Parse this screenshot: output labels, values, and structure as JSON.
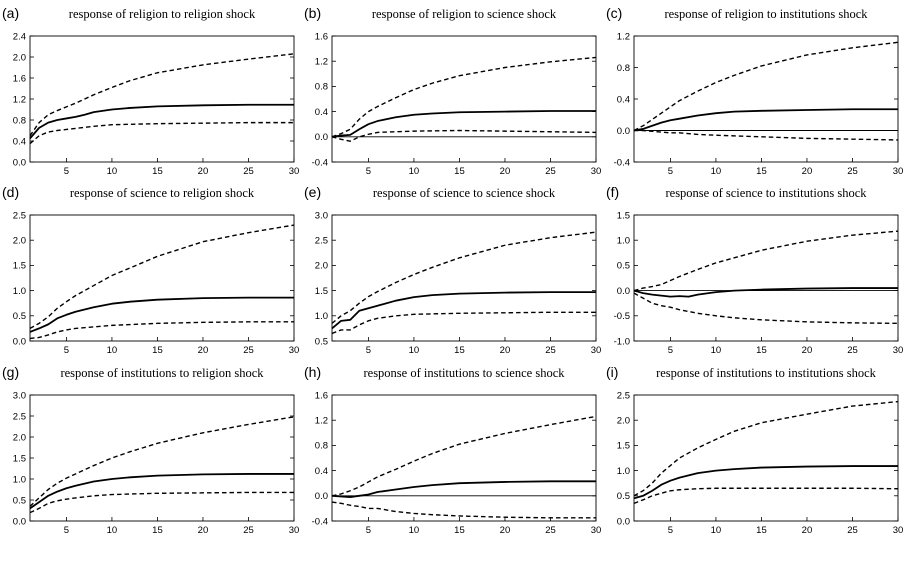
{
  "chart_data": [
    {
      "panel": "(a)",
      "type": "line",
      "title": "response of religion to religion shock",
      "xlim": [
        1,
        30
      ],
      "ylim": [
        0,
        2.4
      ],
      "xticks": [
        5,
        10,
        15,
        20,
        25,
        30
      ],
      "yticks": [
        0.0,
        0.4,
        0.8,
        1.2,
        1.6,
        2.0,
        2.4
      ],
      "ytick_labels": [
        "0.0",
        "0.4",
        "0.8",
        "1.2",
        "1.6",
        "2.0",
        "2.4"
      ],
      "zero_line": false,
      "series": [
        {
          "style": "solid",
          "x": [
            1,
            2,
            3,
            4,
            5,
            6,
            7,
            8,
            10,
            12,
            15,
            20,
            25,
            30
          ],
          "y": [
            0.45,
            0.65,
            0.75,
            0.8,
            0.83,
            0.86,
            0.9,
            0.95,
            1.0,
            1.03,
            1.06,
            1.08,
            1.09,
            1.09
          ]
        },
        {
          "style": "dashed",
          "x": [
            1,
            2,
            3,
            4,
            5,
            6,
            8,
            10,
            12,
            15,
            20,
            25,
            30
          ],
          "y": [
            0.5,
            0.75,
            0.9,
            0.98,
            1.05,
            1.12,
            1.28,
            1.42,
            1.55,
            1.7,
            1.85,
            1.96,
            2.06
          ]
        },
        {
          "style": "dashed",
          "x": [
            1,
            2,
            3,
            4,
            5,
            6,
            8,
            10,
            15,
            20,
            25,
            30
          ],
          "y": [
            0.35,
            0.5,
            0.57,
            0.6,
            0.62,
            0.64,
            0.68,
            0.71,
            0.73,
            0.74,
            0.75,
            0.75
          ]
        }
      ]
    },
    {
      "panel": "(b)",
      "type": "line",
      "title": "response of religion to science shock",
      "xlim": [
        1,
        30
      ],
      "ylim": [
        -0.4,
        1.6
      ],
      "xticks": [
        5,
        10,
        15,
        20,
        25,
        30
      ],
      "yticks": [
        -0.4,
        0.0,
        0.4,
        0.8,
        1.2,
        1.6
      ],
      "ytick_labels": [
        "-0.4",
        "0.0",
        "0.4",
        "0.8",
        "1.2",
        "1.6"
      ],
      "zero_line": true,
      "series": [
        {
          "style": "solid",
          "x": [
            1,
            2,
            3,
            4,
            5,
            6,
            8,
            10,
            12,
            15,
            20,
            25,
            30
          ],
          "y": [
            0.0,
            0.02,
            0.03,
            0.12,
            0.2,
            0.25,
            0.31,
            0.35,
            0.37,
            0.39,
            0.4,
            0.41,
            0.41
          ]
        },
        {
          "style": "dashed",
          "x": [
            1,
            2,
            3,
            4,
            5,
            6,
            8,
            10,
            12,
            15,
            20,
            25,
            30
          ],
          "y": [
            0.0,
            0.05,
            0.12,
            0.28,
            0.4,
            0.48,
            0.62,
            0.75,
            0.85,
            0.97,
            1.1,
            1.19,
            1.26
          ]
        },
        {
          "style": "dashed",
          "x": [
            1,
            2,
            3,
            4,
            5,
            6,
            8,
            10,
            15,
            20,
            25,
            30
          ],
          "y": [
            0.0,
            -0.04,
            -0.07,
            0.0,
            0.04,
            0.07,
            0.08,
            0.09,
            0.1,
            0.09,
            0.08,
            0.07
          ]
        }
      ]
    },
    {
      "panel": "(c)",
      "type": "line",
      "title": "response of religion to institutions shock",
      "xlim": [
        1,
        30
      ],
      "ylim": [
        -0.4,
        1.2
      ],
      "xticks": [
        5,
        10,
        15,
        20,
        25,
        30
      ],
      "yticks": [
        -0.4,
        0.0,
        0.4,
        0.8,
        1.2
      ],
      "ytick_labels": [
        "-0.4",
        "0.0",
        "0.4",
        "0.8",
        "1.2"
      ],
      "zero_line": true,
      "series": [
        {
          "style": "solid",
          "x": [
            1,
            2,
            3,
            4,
            5,
            6,
            8,
            10,
            12,
            15,
            20,
            25,
            30
          ],
          "y": [
            0.0,
            0.02,
            0.06,
            0.1,
            0.13,
            0.15,
            0.19,
            0.22,
            0.24,
            0.25,
            0.26,
            0.27,
            0.27
          ]
        },
        {
          "style": "dashed",
          "x": [
            1,
            2,
            3,
            4,
            5,
            6,
            8,
            10,
            12,
            15,
            20,
            25,
            30
          ],
          "y": [
            0.0,
            0.06,
            0.14,
            0.22,
            0.3,
            0.38,
            0.5,
            0.61,
            0.7,
            0.82,
            0.96,
            1.05,
            1.12
          ]
        },
        {
          "style": "dashed",
          "x": [
            1,
            2,
            3,
            4,
            5,
            6,
            8,
            10,
            15,
            20,
            25,
            30
          ],
          "y": [
            0.0,
            0.0,
            -0.01,
            -0.02,
            -0.03,
            -0.03,
            -0.05,
            -0.06,
            -0.08,
            -0.1,
            -0.11,
            -0.12
          ]
        }
      ]
    },
    {
      "panel": "(d)",
      "type": "line",
      "title": "response of science to religion shock",
      "xlim": [
        1,
        30
      ],
      "ylim": [
        0,
        2.5
      ],
      "xticks": [
        5,
        10,
        15,
        20,
        25,
        30
      ],
      "yticks": [
        0.0,
        0.5,
        1.0,
        1.5,
        2.0,
        2.5
      ],
      "ytick_labels": [
        "0.0",
        "0.5",
        "1.0",
        "1.5",
        "2.0",
        "2.5"
      ],
      "zero_line": false,
      "series": [
        {
          "style": "solid",
          "x": [
            1,
            2,
            3,
            4,
            5,
            6,
            8,
            10,
            12,
            15,
            20,
            25,
            30
          ],
          "y": [
            0.18,
            0.25,
            0.33,
            0.45,
            0.52,
            0.58,
            0.67,
            0.74,
            0.78,
            0.82,
            0.85,
            0.86,
            0.86
          ]
        },
        {
          "style": "dashed",
          "x": [
            1,
            2,
            3,
            4,
            5,
            6,
            8,
            10,
            12,
            15,
            20,
            25,
            30
          ],
          "y": [
            0.25,
            0.35,
            0.48,
            0.65,
            0.78,
            0.9,
            1.1,
            1.3,
            1.45,
            1.68,
            1.97,
            2.15,
            2.3
          ]
        },
        {
          "style": "dashed",
          "x": [
            1,
            2,
            3,
            4,
            5,
            6,
            8,
            10,
            15,
            20,
            25,
            30
          ],
          "y": [
            0.05,
            0.07,
            0.12,
            0.18,
            0.22,
            0.25,
            0.28,
            0.31,
            0.35,
            0.37,
            0.38,
            0.38
          ]
        }
      ]
    },
    {
      "panel": "(e)",
      "type": "line",
      "title": "response of science to science shock",
      "xlim": [
        1,
        30
      ],
      "ylim": [
        0.5,
        3.0
      ],
      "xticks": [
        5,
        10,
        15,
        20,
        25,
        30
      ],
      "yticks": [
        0.5,
        1.0,
        1.5,
        2.0,
        2.5,
        3.0
      ],
      "ytick_labels": [
        "0.5",
        "1.0",
        "1.5",
        "2.0",
        "2.5",
        "3.0"
      ],
      "zero_line": false,
      "series": [
        {
          "style": "solid",
          "x": [
            1,
            2,
            3,
            4,
            5,
            6,
            8,
            10,
            12,
            15,
            20,
            25,
            30
          ],
          "y": [
            0.75,
            0.9,
            0.92,
            1.1,
            1.15,
            1.2,
            1.3,
            1.37,
            1.41,
            1.44,
            1.46,
            1.47,
            1.47
          ]
        },
        {
          "style": "dashed",
          "x": [
            1,
            2,
            3,
            4,
            5,
            6,
            8,
            10,
            12,
            15,
            20,
            25,
            30
          ],
          "y": [
            0.85,
            1.0,
            1.1,
            1.25,
            1.38,
            1.48,
            1.66,
            1.82,
            1.96,
            2.15,
            2.4,
            2.55,
            2.66
          ]
        },
        {
          "style": "dashed",
          "x": [
            1,
            2,
            3,
            4,
            5,
            6,
            8,
            10,
            15,
            20,
            25,
            30
          ],
          "y": [
            0.65,
            0.72,
            0.72,
            0.82,
            0.9,
            0.95,
            1.0,
            1.03,
            1.05,
            1.06,
            1.07,
            1.07
          ]
        }
      ]
    },
    {
      "panel": "(f)",
      "type": "line",
      "title": "response of science to institutions shock",
      "xlim": [
        1,
        30
      ],
      "ylim": [
        -1.0,
        1.5
      ],
      "xticks": [
        5,
        10,
        15,
        20,
        25,
        30
      ],
      "yticks": [
        -1.0,
        -0.5,
        0.0,
        0.5,
        1.0,
        1.5
      ],
      "ytick_labels": [
        "-1.0",
        "-0.5",
        "0.0",
        "0.5",
        "1.0",
        "1.5"
      ],
      "zero_line": true,
      "series": [
        {
          "style": "solid",
          "x": [
            1,
            2,
            3,
            4,
            5,
            6,
            7,
            8,
            10,
            12,
            15,
            20,
            25,
            30
          ],
          "y": [
            0.0,
            -0.05,
            -0.08,
            -0.1,
            -0.12,
            -0.11,
            -0.12,
            -0.08,
            -0.03,
            0.0,
            0.02,
            0.04,
            0.05,
            0.05
          ]
        },
        {
          "style": "dashed",
          "x": [
            1,
            2,
            3,
            4,
            5,
            6,
            8,
            10,
            12,
            15,
            20,
            25,
            30
          ],
          "y": [
            0.0,
            0.05,
            0.08,
            0.12,
            0.2,
            0.28,
            0.42,
            0.55,
            0.65,
            0.8,
            0.98,
            1.1,
            1.18
          ]
        },
        {
          "style": "dashed",
          "x": [
            1,
            2,
            3,
            4,
            5,
            6,
            8,
            10,
            12,
            15,
            20,
            25,
            30
          ],
          "y": [
            -0.05,
            -0.15,
            -0.25,
            -0.3,
            -0.33,
            -0.38,
            -0.45,
            -0.5,
            -0.54,
            -0.58,
            -0.62,
            -0.64,
            -0.65
          ]
        }
      ]
    },
    {
      "panel": "(g)",
      "type": "line",
      "title": "response of institutions to religion shock",
      "xlim": [
        1,
        30
      ],
      "ylim": [
        0,
        3.0
      ],
      "xticks": [
        5,
        10,
        15,
        20,
        25,
        30
      ],
      "yticks": [
        0.0,
        0.5,
        1.0,
        1.5,
        2.0,
        2.5,
        3.0
      ],
      "ytick_labels": [
        "0.0",
        "0.5",
        "1.0",
        "1.5",
        "2.0",
        "2.5",
        "3.0"
      ],
      "zero_line": false,
      "series": [
        {
          "style": "solid",
          "x": [
            1,
            2,
            3,
            4,
            5,
            6,
            8,
            10,
            12,
            15,
            20,
            25,
            30
          ],
          "y": [
            0.3,
            0.45,
            0.6,
            0.7,
            0.78,
            0.84,
            0.94,
            1.0,
            1.04,
            1.08,
            1.11,
            1.12,
            1.12
          ]
        },
        {
          "style": "dashed",
          "x": [
            1,
            2,
            3,
            4,
            5,
            6,
            8,
            10,
            12,
            15,
            20,
            25,
            30
          ],
          "y": [
            0.35,
            0.55,
            0.75,
            0.9,
            1.02,
            1.12,
            1.32,
            1.5,
            1.65,
            1.85,
            2.1,
            2.3,
            2.48
          ]
        },
        {
          "style": "dashed",
          "x": [
            1,
            2,
            3,
            4,
            5,
            6,
            8,
            10,
            15,
            20,
            25,
            30
          ],
          "y": [
            0.2,
            0.3,
            0.42,
            0.48,
            0.52,
            0.55,
            0.6,
            0.63,
            0.66,
            0.67,
            0.68,
            0.68
          ]
        }
      ]
    },
    {
      "panel": "(h)",
      "type": "line",
      "title": "response of institutions to science shock",
      "xlim": [
        1,
        30
      ],
      "ylim": [
        -0.4,
        1.6
      ],
      "xticks": [
        5,
        10,
        15,
        20,
        25,
        30
      ],
      "yticks": [
        -0.4,
        0.0,
        0.4,
        0.8,
        1.2,
        1.6
      ],
      "ytick_labels": [
        "-0.4",
        "0.0",
        "0.4",
        "0.8",
        "1.2",
        "1.6"
      ],
      "zero_line": true,
      "series": [
        {
          "style": "solid",
          "x": [
            1,
            2,
            3,
            4,
            5,
            6,
            8,
            10,
            12,
            15,
            20,
            25,
            30
          ],
          "y": [
            0.0,
            -0.01,
            -0.02,
            0.0,
            0.02,
            0.06,
            0.1,
            0.14,
            0.17,
            0.2,
            0.22,
            0.23,
            0.23
          ]
        },
        {
          "style": "dashed",
          "x": [
            1,
            2,
            3,
            4,
            5,
            6,
            8,
            10,
            12,
            15,
            20,
            25,
            30
          ],
          "y": [
            0.0,
            0.03,
            0.08,
            0.14,
            0.22,
            0.3,
            0.42,
            0.55,
            0.67,
            0.82,
            0.99,
            1.13,
            1.26
          ]
        },
        {
          "style": "dashed",
          "x": [
            1,
            2,
            3,
            4,
            5,
            6,
            8,
            10,
            12,
            15,
            20,
            25,
            30
          ],
          "y": [
            -0.1,
            -0.12,
            -0.15,
            -0.17,
            -0.2,
            -0.2,
            -0.25,
            -0.28,
            -0.3,
            -0.32,
            -0.34,
            -0.35,
            -0.35
          ]
        }
      ]
    },
    {
      "panel": "(i)",
      "type": "line",
      "title": "response of institutions to institutions shock",
      "xlim": [
        1,
        30
      ],
      "ylim": [
        0,
        2.5
      ],
      "xticks": [
        5,
        10,
        15,
        20,
        25,
        30
      ],
      "yticks": [
        0.0,
        0.5,
        1.0,
        1.5,
        2.0,
        2.5
      ],
      "ytick_labels": [
        "0.0",
        "0.5",
        "1.0",
        "1.5",
        "2.0",
        "2.5"
      ],
      "zero_line": false,
      "series": [
        {
          "style": "solid",
          "x": [
            1,
            2,
            3,
            4,
            5,
            6,
            8,
            10,
            12,
            15,
            20,
            25,
            30
          ],
          "y": [
            0.45,
            0.5,
            0.6,
            0.72,
            0.8,
            0.86,
            0.95,
            1.0,
            1.03,
            1.06,
            1.08,
            1.09,
            1.09
          ]
        },
        {
          "style": "dashed",
          "x": [
            1,
            2,
            3,
            4,
            5,
            6,
            8,
            10,
            12,
            15,
            20,
            25,
            30
          ],
          "y": [
            0.5,
            0.6,
            0.75,
            0.95,
            1.1,
            1.25,
            1.45,
            1.62,
            1.78,
            1.95,
            2.12,
            2.28,
            2.37
          ]
        },
        {
          "style": "dashed",
          "x": [
            1,
            2,
            3,
            4,
            5,
            6,
            8,
            10,
            15,
            20,
            25,
            30
          ],
          "y": [
            0.35,
            0.42,
            0.5,
            0.55,
            0.6,
            0.62,
            0.64,
            0.65,
            0.65,
            0.65,
            0.65,
            0.64
          ]
        }
      ]
    }
  ]
}
